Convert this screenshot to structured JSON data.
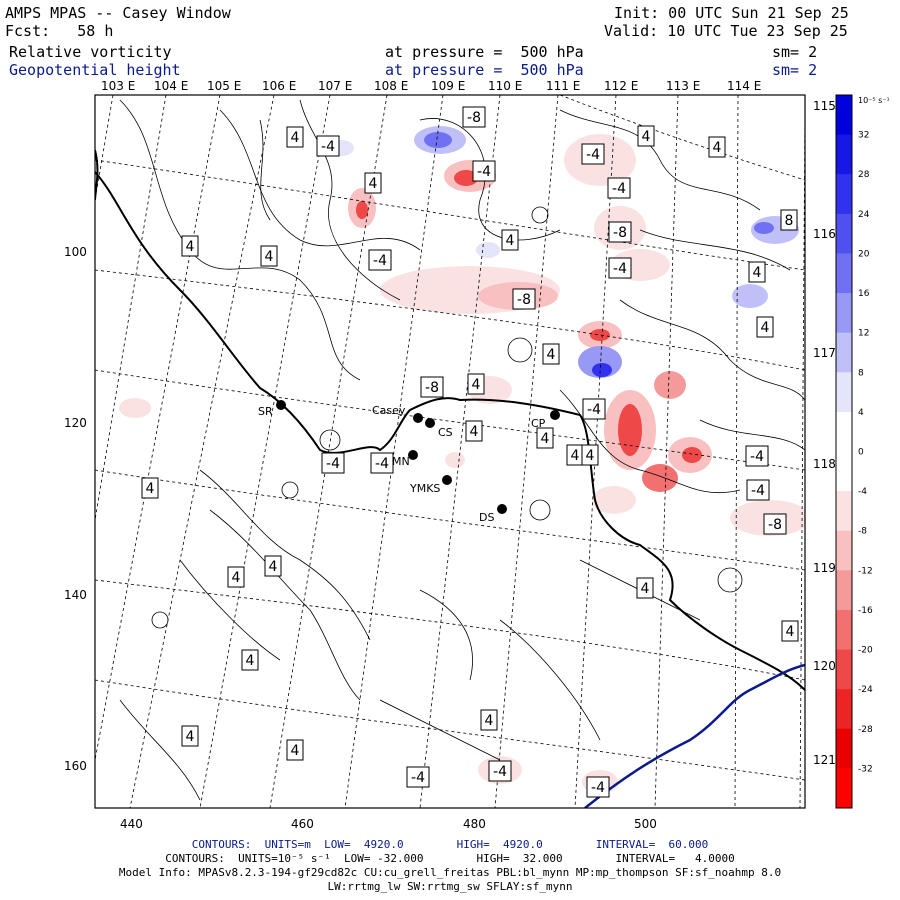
{
  "header": {
    "title": "AMPS MPAS -- Casey Window",
    "fcst": "Fcst:   58 h",
    "init": "Init: 00 UTC Sun 21 Sep 25",
    "valid": "Valid: 10 UTC Tue 23 Sep 25",
    "field1": {
      "name": "Relative vorticity",
      "pressure": "at pressure =  500 hPa",
      "sm": "sm= 2"
    },
    "field2": {
      "name": "Geopotential height",
      "pressure": "at pressure =  500 hPa",
      "sm": "sm= 2"
    }
  },
  "lon_top": [
    "103 E",
    "104 E",
    "105 E",
    "106 E",
    "107 E",
    "108 E",
    "109 E",
    "110 E",
    "111 E",
    "112 E",
    "113 E",
    "114 E"
  ],
  "lat_right": [
    "115 E",
    "116 E",
    "117 E",
    "118 E",
    "119 E",
    "120 E",
    "121 E"
  ],
  "x_ticks": [
    "440",
    "460",
    "480",
    "500"
  ],
  "y_ticks": [
    "100",
    "120",
    "140",
    "160"
  ],
  "stations": [
    {
      "name": "SR"
    },
    {
      "name": "Casey"
    },
    {
      "name": "CS"
    },
    {
      "name": "CP"
    },
    {
      "name": "MN"
    },
    {
      "name": "YMKS"
    },
    {
      "name": "DS"
    }
  ],
  "contour_labels": [
    "4",
    "-4",
    "-8",
    "4",
    "-4",
    "4",
    "-4",
    "4",
    "-8",
    "-4",
    "4",
    "-8",
    "4",
    "-4",
    "8",
    "4",
    "4",
    "-4",
    "4",
    "-8",
    "4",
    "4",
    "-4",
    "-4",
    "4",
    "-4",
    "4",
    "4",
    "-4",
    "4",
    "4",
    "4",
    "-4",
    "-4",
    "-8",
    "4",
    "4",
    "4",
    "4",
    "4",
    "4",
    "4",
    "-4",
    "-4",
    "-4"
  ],
  "colorbar": {
    "unit": "10⁻⁵ s⁻¹",
    "ticks": [
      "32",
      "28",
      "24",
      "20",
      "16",
      "12",
      "8",
      "4",
      "0",
      "-4",
      "-8",
      "-12",
      "-16",
      "-20",
      "-24",
      "-28",
      "-32"
    ],
    "colors": [
      "#0000dd",
      "#1818e6",
      "#3232ee",
      "#5050f0",
      "#7070f2",
      "#9898f5",
      "#c0c0f8",
      "#e4e4fb",
      "#ffffff",
      "#ffffff",
      "#fbe2e2",
      "#f8c0c0",
      "#f59a9a",
      "#f27070",
      "#ef4848",
      "#ec2424",
      "#ea0000",
      "#ff0000"
    ]
  },
  "footer": {
    "contours1": "CONTOURS:  UNITS=m  LOW=  4920.0        HIGH=  4920.0        INTERVAL=  60.000",
    "contours2": "CONTOURS:  UNITS=10⁻⁵ s⁻¹  LOW= -32.000        HIGH=  32.000        INTERVAL=   4.0000",
    "model1": "Model Info: MPASv8.2.3-194-gf29cd82c CU:cu_grell_freitas PBL:bl_mynn MP:mp_thompson SF:sf_noahmp 8.0",
    "model2": "LW:rrtmg_lw SW:rrtmg_sw SFLAY:sf_mynn"
  }
}
